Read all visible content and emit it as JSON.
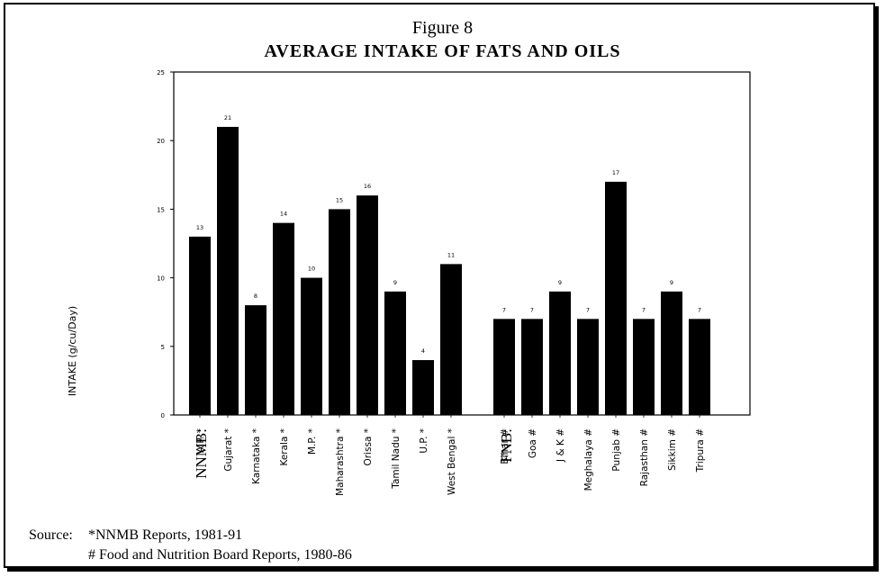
{
  "figure_number": "Figure 8",
  "source": {
    "label": "Source:",
    "line1": "*NNMB Reports, 1981-91",
    "line2": "# Food and Nutrition Board Reports, 1980-86"
  },
  "colors": {
    "bar": "#000000",
    "axis": "#000000"
  },
  "chart_data": {
    "type": "bar",
    "title": "AVERAGE INTAKE OF FATS AND OILS",
    "xlabel": "",
    "ylabel": "INTAKE (g/cu/Day)",
    "ylim": [
      0,
      25
    ],
    "yticks": [
      "0",
      "5",
      "10",
      "15",
      "20",
      "25"
    ],
    "groups": [
      {
        "name": "NNMB:",
        "categories": [
          "A.P. *",
          "Gujarat *",
          "Karnataka *",
          "Kerala *",
          "M.P. *",
          "Maharashtra *",
          "Orissa *",
          "Tamil Nadu *",
          "U.P. *",
          "West Bengal *"
        ],
        "values": [
          13,
          21,
          8,
          14,
          10,
          15,
          16,
          9,
          4,
          11
        ],
        "labels": [
          "13",
          "21",
          "8",
          "14",
          "10",
          "15",
          "16",
          "9",
          "4",
          "11"
        ]
      },
      {
        "name": "FNB:",
        "categories": [
          "Bihar #",
          "Goa #",
          "J & K #",
          "Meghalaya #",
          "Punjab #",
          "Rajasthan #",
          "Sikkim #",
          "Tripura #"
        ],
        "values": [
          7,
          7,
          9,
          7,
          17,
          7,
          9,
          7
        ],
        "labels": [
          "7",
          "7",
          "9",
          "7",
          "17",
          "7",
          "9",
          "7"
        ]
      }
    ]
  }
}
